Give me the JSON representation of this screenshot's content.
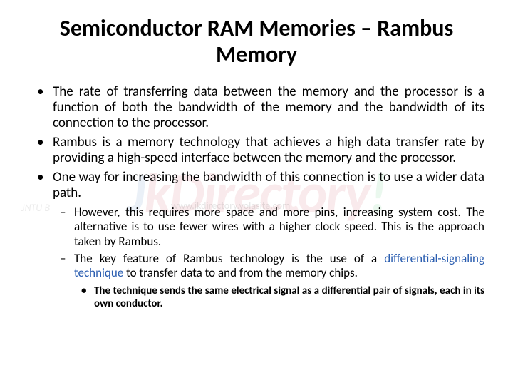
{
  "title": "Semiconductor RAM Memories – Rambus Memory",
  "bullets": {
    "b1": "The rate of transferring data between the memory and the processor is a function of both the bandwidth of the memory and the bandwidth of its connection to the processor.",
    "b2": "Rambus is a memory technology that achieves a high data transfer rate by providing a high-speed interface between the memory and the processor.",
    "b3": "One way for increasing the bandwidth of this connection is to use a wider data path."
  },
  "sub": {
    "s1": "However, this requires more space and more pins, increasing system cost. The alternative is to use fewer wires with a higher clock speed. This is the approach taken by Rambus.",
    "s2_pre": "The key feature of Rambus technology is the use of a ",
    "s2_hl": "differential-signaling technique",
    "s2_post": " to transfer data to and from the memory chips."
  },
  "subsub": {
    "t1": "The technique sends the same electrical signal as a differential pair of signals, each in its own conductor."
  },
  "watermark": {
    "left": "J",
    "mid": "kDirectory",
    "bang": "!",
    "sub": "JNTU B",
    "url": "www.jkdirectory.yolasite.com"
  },
  "colors": {
    "highlight": "#2a5db0",
    "text": "#000000",
    "background": "#ffffff"
  }
}
